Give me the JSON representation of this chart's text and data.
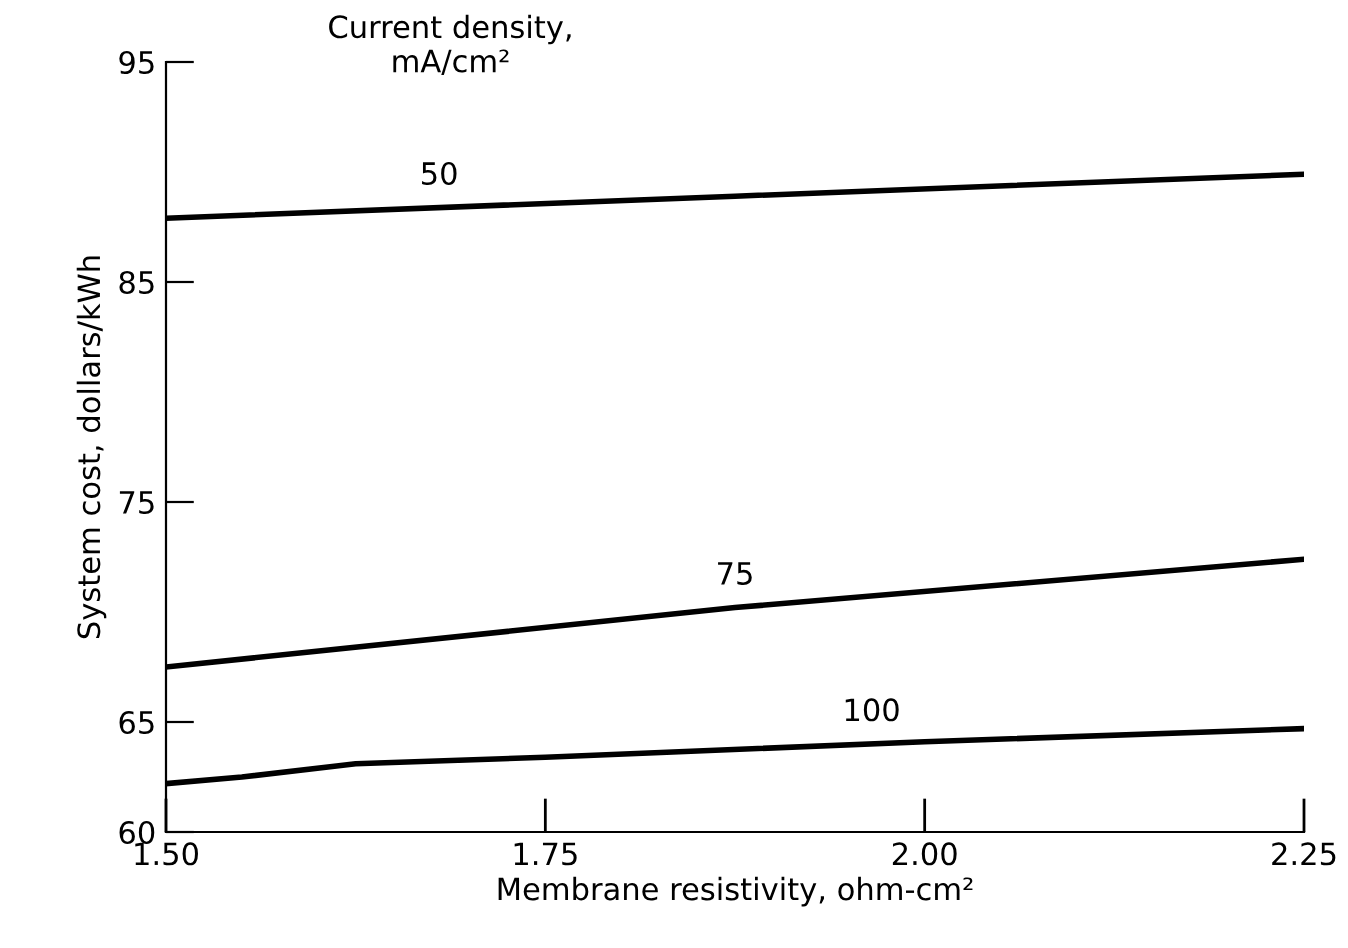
{
  "chart_data": {
    "type": "line",
    "xlabel": "Membrane resistivity, ohm-cm²",
    "ylabel": "System cost, dollars/kWh",
    "legend_title": "Current density,\nmA/cm²",
    "xlim": [
      1.5,
      2.25
    ],
    "xticks": [
      {
        "value": 1.5,
        "label": "1.50"
      },
      {
        "value": 1.75,
        "label": "1.75"
      },
      {
        "value": 2.0,
        "label": "2.00"
      },
      {
        "value": 2.25,
        "label": "2.25"
      }
    ],
    "ylim": [
      60,
      95
    ],
    "yticks": [
      60,
      65,
      75,
      85,
      95
    ],
    "grid": false,
    "marker": "none",
    "line_style": "solid",
    "legend": false,
    "series": [
      {
        "name": "50",
        "color": "#000000",
        "x": [
          1.5,
          1.875,
          2.25
        ],
        "values": [
          87.9,
          88.9,
          89.9
        ]
      },
      {
        "name": "75",
        "color": "#000000",
        "x": [
          1.5,
          1.875,
          2.25
        ],
        "values": [
          67.5,
          70.2,
          72.4
        ]
      },
      {
        "name": "100",
        "color": "#000000",
        "x": [
          1.5,
          1.55,
          1.625,
          1.75,
          2.0,
          2.25
        ],
        "values": [
          62.2,
          62.5,
          63.1,
          63.4,
          64.1,
          64.7
        ]
      }
    ]
  }
}
